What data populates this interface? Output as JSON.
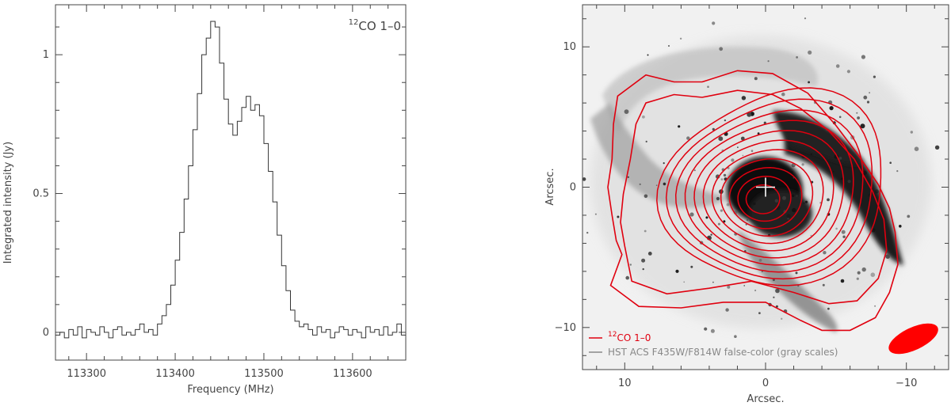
{
  "chart_data": [
    {
      "type": "line",
      "subtype": "step",
      "xlabel": "Frequency (MHz)",
      "ylabel": "Integrated intensity (Jy)",
      "xlim": [
        113265,
        113660
      ],
      "ylim": [
        -0.1,
        1.18
      ],
      "xticks": [
        113300,
        113400,
        113500,
        113600
      ],
      "xtick_labels": [
        "113300",
        "113400",
        "113500",
        "113600"
      ],
      "yticks": [
        0,
        0.5,
        1
      ],
      "ytick_labels": [
        "0",
        "0.5",
        "1"
      ],
      "annotation": {
        "sup": "12",
        "text": "CO 1–0"
      },
      "grid": false,
      "series": [
        {
          "name": "",
          "color": "#333333",
          "x": [
            113265,
            113270,
            113275,
            113280,
            113285,
            113290,
            113295,
            113300,
            113305,
            113310,
            113315,
            113320,
            113325,
            113330,
            113335,
            113340,
            113345,
            113350,
            113355,
            113360,
            113365,
            113370,
            113375,
            113380,
            113385,
            113390,
            113395,
            113400,
            113405,
            113410,
            113415,
            113420,
            113425,
            113430,
            113435,
            113440,
            113445,
            113450,
            113455,
            113460,
            113465,
            113470,
            113475,
            113480,
            113485,
            113490,
            113495,
            113500,
            113505,
            113510,
            113515,
            113520,
            113525,
            113530,
            113535,
            113540,
            113545,
            113550,
            113555,
            113560,
            113565,
            113570,
            113575,
            113580,
            113585,
            113590,
            113595,
            113600,
            113605,
            113610,
            113615,
            113620,
            113625,
            113630,
            113635,
            113640,
            113645,
            113650,
            113655
          ],
          "y": [
            -0.01,
            0.0,
            -0.02,
            0.01,
            -0.01,
            0.02,
            -0.02,
            0.01,
            0.0,
            -0.01,
            0.02,
            0.0,
            -0.02,
            0.01,
            0.02,
            -0.01,
            0.0,
            -0.01,
            0.01,
            0.03,
            0.0,
            0.01,
            -0.01,
            0.03,
            0.06,
            0.1,
            0.17,
            0.26,
            0.36,
            0.48,
            0.6,
            0.73,
            0.86,
            1.0,
            1.06,
            1.12,
            1.1,
            0.97,
            0.84,
            0.75,
            0.71,
            0.76,
            0.81,
            0.85,
            0.8,
            0.82,
            0.78,
            0.68,
            0.58,
            0.47,
            0.35,
            0.24,
            0.15,
            0.08,
            0.04,
            0.02,
            0.03,
            0.01,
            -0.01,
            0.02,
            0.0,
            0.01,
            -0.02,
            0.0,
            0.02,
            0.01,
            -0.01,
            0.01,
            0.0,
            -0.02,
            0.02,
            0.0,
            0.01,
            -0.01,
            0.02,
            -0.01,
            0.0,
            0.03,
            -0.01
          ]
        }
      ]
    },
    {
      "type": "contour",
      "background": "HST gray-scale image",
      "xlabel": "Arcsec.",
      "ylabel": "Arcsec.",
      "xlim": [
        13,
        -13
      ],
      "ylim": [
        -13,
        13
      ],
      "xticks": [
        10,
        0,
        -10
      ],
      "xtick_labels": [
        "10",
        "0",
        "−10"
      ],
      "yticks": [
        10,
        0,
        -10
      ],
      "ytick_labels": [
        "10",
        "0",
        "−10"
      ],
      "contour_color": "#e0000f",
      "contour_levels": 13,
      "contours_outer": [
        [
          [
            10.2,
            -4.8
          ],
          [
            11,
            -7
          ],
          [
            9,
            -8.5
          ],
          [
            6,
            -8.6
          ],
          [
            3,
            -8.2
          ],
          [
            0,
            -8.2
          ],
          [
            -2.5,
            -9.5
          ],
          [
            -4,
            -10.2
          ],
          [
            -6,
            -10.2
          ],
          [
            -7.8,
            -9.3
          ],
          [
            -8.8,
            -7.5
          ],
          [
            -9.4,
            -5.5
          ],
          [
            -9.2,
            -3.2
          ],
          [
            -8.8,
            -1.5
          ],
          [
            -8,
            0.2
          ],
          [
            -6.5,
            2.4
          ],
          [
            -5,
            4.4
          ],
          [
            -3,
            6.7
          ],
          [
            -0.5,
            8.1
          ],
          [
            2,
            8.3
          ],
          [
            4.5,
            7.5
          ],
          [
            6.5,
            7.5
          ],
          [
            8.5,
            8
          ],
          [
            10.5,
            6.5
          ],
          [
            10.8,
            4.5
          ],
          [
            10.9,
            2
          ],
          [
            11.2,
            0
          ],
          [
            10.9,
            -2
          ],
          [
            10.6,
            -3.8
          ],
          [
            10.2,
            -4.8
          ]
        ],
        [
          [
            10,
            -4.2
          ],
          [
            9.5,
            -6.7
          ],
          [
            7,
            -7.6
          ],
          [
            4,
            -7.2
          ],
          [
            1,
            -6.7
          ],
          [
            -2,
            -7.5
          ],
          [
            -4.5,
            -8.3
          ],
          [
            -6.5,
            -8.1
          ],
          [
            -8,
            -6.5
          ],
          [
            -8.6,
            -4.5
          ],
          [
            -8.4,
            -2.3
          ],
          [
            -7.6,
            -0.3
          ],
          [
            -6.3,
            2
          ],
          [
            -4.5,
            4
          ],
          [
            -2.5,
            5.6
          ],
          [
            -0.5,
            6.6
          ],
          [
            2,
            6.9
          ],
          [
            4.5,
            6.4
          ],
          [
            6.5,
            6.6
          ],
          [
            8.5,
            6
          ],
          [
            9.2,
            4.5
          ],
          [
            9.6,
            2
          ],
          [
            10.1,
            -0.5
          ],
          [
            10.3,
            -2.5
          ],
          [
            10,
            -4.2
          ]
        ]
      ],
      "contour_center": [
        0.3,
        -0.9
      ],
      "marker": {
        "type": "cross",
        "x": 0,
        "y": 0,
        "color": "#ffffff"
      },
      "beam": {
        "x": -10.5,
        "y": -10.8,
        "major_arcsec": 3.8,
        "minor_arcsec": 1.6,
        "angle_deg": -25,
        "color": "#ff0000"
      },
      "legend": [
        {
          "sup": "12",
          "label": "CO 1–0",
          "color": "#e0000f"
        },
        {
          "label": "HST ACS F435W/F814W false-color (gray scales)",
          "color": "#888888"
        }
      ],
      "legend_position": "bottom-left"
    }
  ]
}
